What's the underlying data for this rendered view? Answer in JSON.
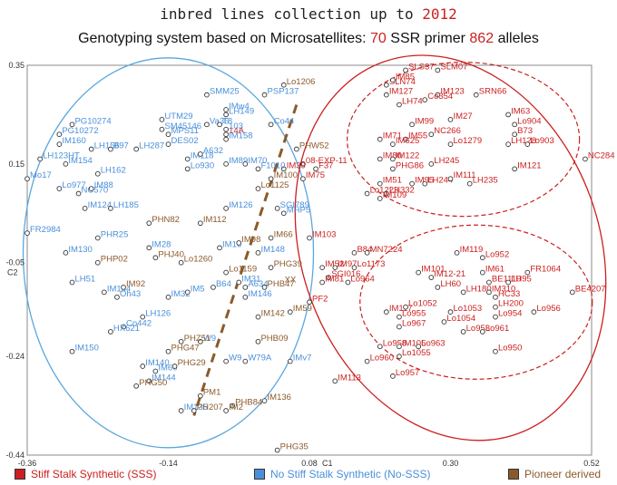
{
  "title": {
    "prefix": "inbred lines collection up to ",
    "year": "2012"
  },
  "subtitle": {
    "text1": "Genotyping system based on Microsatellites:",
    "n_primers": "70",
    "text2": "SSR primer",
    "n_alleles": "862",
    "text3": "alleles"
  },
  "legend": [
    {
      "label": "Stiff Stalk Synthetic (SSS)",
      "color": "#cc1f1f",
      "text_color": "#cc1f1f"
    },
    {
      "label": "No Stiff Stalk Synthetic (No-SSS)",
      "color": "#4a90d9",
      "text_color": "#4a90d9"
    },
    {
      "label": "Pioneer derived",
      "color": "#8b5a2b",
      "text_color": "#8b5a2b"
    }
  ],
  "colors": {
    "sss": "#cc1f1f",
    "nosss": "#4a90d9",
    "pioneer": "#8b5a2b"
  },
  "chart_data": {
    "type": "scatter",
    "xlabel": "C1",
    "ylabel": "C2",
    "xlim": [
      -0.36,
      0.52
    ],
    "ylim": [
      -0.44,
      0.35
    ],
    "xticks": [
      "-0.36",
      "-0.14",
      "0.08",
      "0.30",
      "0.52"
    ],
    "yticks": [
      "0.35",
      "0.15",
      "-0.05",
      "-0.24",
      "-0.44"
    ],
    "series": [
      {
        "key": "sss",
        "points": [
          {
            "label": "SLS37",
            "x": 0.23,
            "y": 0.34
          },
          {
            "label": "SLM07",
            "x": 0.28,
            "y": 0.34
          },
          {
            "label": "SLN74",
            "x": 0.2,
            "y": 0.31
          },
          {
            "label": "IM85",
            "x": 0.21,
            "y": 0.32
          },
          {
            "label": "IM127",
            "x": 0.2,
            "y": 0.29
          },
          {
            "label": "IM123",
            "x": 0.28,
            "y": 0.29
          },
          {
            "label": "SRN66",
            "x": 0.34,
            "y": 0.29
          },
          {
            "label": "LH74",
            "x": 0.22,
            "y": 0.27
          },
          {
            "label": "Co354",
            "x": 0.26,
            "y": 0.28
          },
          {
            "label": "IM63",
            "x": 0.39,
            "y": 0.25
          },
          {
            "label": "IM27",
            "x": 0.3,
            "y": 0.24
          },
          {
            "label": "Lo904",
            "x": 0.4,
            "y": 0.23
          },
          {
            "label": "IM99",
            "x": 0.24,
            "y": 0.23
          },
          {
            "label": "NC266",
            "x": 0.27,
            "y": 0.21
          },
          {
            "label": "B73",
            "x": 0.4,
            "y": 0.21
          },
          {
            "label": "IM71",
            "x": 0.19,
            "y": 0.2
          },
          {
            "label": "IM55",
            "x": 0.23,
            "y": 0.2
          },
          {
            "label": "IM625",
            "x": 0.21,
            "y": 0.19
          },
          {
            "label": "Lo1279",
            "x": 0.3,
            "y": 0.19
          },
          {
            "label": "LH128",
            "x": 0.39,
            "y": 0.19
          },
          {
            "label": "Lo903",
            "x": 0.42,
            "y": 0.19
          },
          {
            "label": "NC284",
            "x": 0.51,
            "y": 0.16
          },
          {
            "label": "IM80",
            "x": 0.19,
            "y": 0.16
          },
          {
            "label": "IM122",
            "x": 0.21,
            "y": 0.16
          },
          {
            "label": "LH245",
            "x": 0.27,
            "y": 0.15
          },
          {
            "label": "IM121",
            "x": 0.4,
            "y": 0.14
          },
          {
            "label": "PHG86",
            "x": 0.21,
            "y": 0.14
          },
          {
            "label": "IM51",
            "x": 0.19,
            "y": 0.11
          },
          {
            "label": "IM95",
            "x": 0.24,
            "y": 0.11
          },
          {
            "label": "LH244",
            "x": 0.26,
            "y": 0.11
          },
          {
            "label": "IM111",
            "x": 0.3,
            "y": 0.12
          },
          {
            "label": "LH235",
            "x": 0.33,
            "y": 0.11
          },
          {
            "label": "Lo1223",
            "x": 0.17,
            "y": 0.09
          },
          {
            "label": "LH332",
            "x": 0.2,
            "y": 0.09
          },
          {
            "label": "IM109",
            "x": 0.19,
            "y": 0.08
          },
          {
            "label": "08-EXP-11",
            "x": 0.07,
            "y": 0.15
          },
          {
            "label": "IM39",
            "x": 0.04,
            "y": 0.14
          },
          {
            "label": "IM75",
            "x": 0.07,
            "y": 0.12
          },
          {
            "label": "F37",
            "x": 0.09,
            "y": 0.14
          },
          {
            "label": "IM103",
            "x": 0.08,
            "y": 0.0
          },
          {
            "label": "B84",
            "x": 0.15,
            "y": -0.03
          },
          {
            "label": "MN7224",
            "x": 0.17,
            "y": -0.03
          },
          {
            "label": "IM52",
            "x": 0.1,
            "y": -0.06
          },
          {
            "label": "IM97",
            "x": 0.12,
            "y": -0.06
          },
          {
            "label": "SGI016",
            "x": 0.11,
            "y": -0.08
          },
          {
            "label": "Lo1173",
            "x": 0.15,
            "y": -0.06
          },
          {
            "label": "IM81",
            "x": 0.1,
            "y": -0.09
          },
          {
            "label": "Lo964",
            "x": 0.14,
            "y": -0.09
          },
          {
            "label": "IM119",
            "x": 0.31,
            "y": -0.03
          },
          {
            "label": "Lo952",
            "x": 0.35,
            "y": -0.04
          },
          {
            "label": "IM61",
            "x": 0.35,
            "y": -0.07
          },
          {
            "label": "FR1064",
            "x": 0.42,
            "y": -0.07
          },
          {
            "label": "IM101",
            "x": 0.25,
            "y": -0.07
          },
          {
            "label": "IM12-21",
            "x": 0.27,
            "y": -0.08
          },
          {
            "label": "BE1110",
            "x": 0.36,
            "y": -0.09
          },
          {
            "label": "LH95",
            "x": 0.39,
            "y": -0.09
          },
          {
            "label": "LH60",
            "x": 0.28,
            "y": -0.1
          },
          {
            "label": "LH180",
            "x": 0.32,
            "y": -0.11
          },
          {
            "label": "IM310",
            "x": 0.36,
            "y": -0.11
          },
          {
            "label": "BE4207",
            "x": 0.49,
            "y": -0.11
          },
          {
            "label": "HC33",
            "x": 0.37,
            "y": -0.12
          },
          {
            "label": "LH200",
            "x": 0.37,
            "y": -0.14
          },
          {
            "label": "Lo956",
            "x": 0.43,
            "y": -0.15
          },
          {
            "label": "PF2",
            "x": 0.08,
            "y": -0.13
          },
          {
            "label": "IM117",
            "x": 0.2,
            "y": -0.15
          },
          {
            "label": "Lo1052",
            "x": 0.23,
            "y": -0.14
          },
          {
            "label": "Lo1053",
            "x": 0.3,
            "y": -0.15
          },
          {
            "label": "Lo955",
            "x": 0.22,
            "y": -0.16
          },
          {
            "label": "Lo1054",
            "x": 0.29,
            "y": -0.17
          },
          {
            "label": "Lo954",
            "x": 0.37,
            "y": -0.16
          },
          {
            "label": "Lo967",
            "x": 0.22,
            "y": -0.18
          },
          {
            "label": "Lo953",
            "x": 0.32,
            "y": -0.19
          },
          {
            "label": "Lo961",
            "x": 0.35,
            "y": -0.19
          },
          {
            "label": "Lo958",
            "x": 0.19,
            "y": -0.22
          },
          {
            "label": "IM105",
            "x": 0.22,
            "y": -0.22
          },
          {
            "label": "Lo963",
            "x": 0.25,
            "y": -0.22
          },
          {
            "label": "Lo1055",
            "x": 0.22,
            "y": -0.24
          },
          {
            "label": "Lo950",
            "x": 0.37,
            "y": -0.23
          },
          {
            "label": "Lo960",
            "x": 0.17,
            "y": -0.25
          },
          {
            "label": "Lo957",
            "x": 0.21,
            "y": -0.28
          },
          {
            "label": "IM113",
            "x": 0.12,
            "y": -0.29
          },
          {
            "label": "14A",
            "x": -0.05,
            "y": 0.21
          }
        ]
      },
      {
        "key": "nosss",
        "points": [
          {
            "label": "SMM25",
            "x": -0.08,
            "y": 0.29
          },
          {
            "label": "IMw4",
            "x": -0.05,
            "y": 0.26
          },
          {
            "label": "LH149",
            "x": -0.05,
            "y": 0.25
          },
          {
            "label": "UTM29",
            "x": -0.15,
            "y": 0.24
          },
          {
            "label": "Va36",
            "x": -0.08,
            "y": 0.23
          },
          {
            "label": "PG10274",
            "x": -0.29,
            "y": 0.23
          },
          {
            "label": "SM45146",
            "x": -0.15,
            "y": 0.22
          },
          {
            "label": "PG10272",
            "x": -0.31,
            "y": 0.21
          },
          {
            "label": "MPS11",
            "x": -0.14,
            "y": 0.21
          },
          {
            "label": "T8",
            "x": -0.06,
            "y": 0.23
          },
          {
            "label": "103",
            "x": -0.05,
            "y": 0.22
          },
          {
            "label": "IM160",
            "x": -0.31,
            "y": 0.19
          },
          {
            "label": "DES02",
            "x": -0.14,
            "y": 0.19
          },
          {
            "label": "IM158",
            "x": -0.05,
            "y": 0.2
          },
          {
            "label": "LH156",
            "x": -0.26,
            "y": 0.18
          },
          {
            "label": "B97",
            "x": -0.23,
            "y": 0.18
          },
          {
            "label": "LH287",
            "x": -0.19,
            "y": 0.18
          },
          {
            "label": "LH123HT",
            "x": -0.34,
            "y": 0.16
          },
          {
            "label": "IM154",
            "x": -0.3,
            "y": 0.15
          },
          {
            "label": "IM118",
            "x": -0.11,
            "y": 0.16
          },
          {
            "label": "A632",
            "x": -0.09,
            "y": 0.17
          },
          {
            "label": "Mo17",
            "x": -0.36,
            "y": 0.12
          },
          {
            "label": "LH162",
            "x": -0.25,
            "y": 0.13
          },
          {
            "label": "IM89",
            "x": -0.05,
            "y": 0.15
          },
          {
            "label": "IM70",
            "x": -0.02,
            "y": 0.15
          },
          {
            "label": "F1010",
            "x": 0.0,
            "y": 0.14
          },
          {
            "label": "Lo930",
            "x": -0.11,
            "y": 0.14
          },
          {
            "label": "Lo977",
            "x": -0.31,
            "y": 0.1
          },
          {
            "label": "NC570",
            "x": -0.28,
            "y": 0.09
          },
          {
            "label": "IM88",
            "x": -0.26,
            "y": 0.1
          },
          {
            "label": "IM124",
            "x": -0.27,
            "y": 0.06
          },
          {
            "label": "LH185",
            "x": -0.23,
            "y": 0.06
          },
          {
            "label": "IM126",
            "x": -0.05,
            "y": 0.06
          },
          {
            "label": "FR2984",
            "x": -0.36,
            "y": 0.01
          },
          {
            "label": "PHR25",
            "x": -0.25,
            "y": 0.0
          },
          {
            "label": "IM130",
            "x": -0.3,
            "y": -0.03
          },
          {
            "label": "IM28",
            "x": -0.17,
            "y": -0.02
          },
          {
            "label": "IM16",
            "x": -0.06,
            "y": -0.02
          },
          {
            "label": "IM148",
            "x": 0.0,
            "y": -0.03
          },
          {
            "label": "LH51",
            "x": -0.29,
            "y": -0.09
          },
          {
            "label": "IM134",
            "x": -0.24,
            "y": -0.11
          },
          {
            "label": "Oh43",
            "x": -0.22,
            "y": -0.12
          },
          {
            "label": "IM32",
            "x": -0.14,
            "y": -0.12
          },
          {
            "label": "IM5",
            "x": -0.11,
            "y": -0.11
          },
          {
            "label": "B64",
            "x": -0.07,
            "y": -0.1
          },
          {
            "label": "IM31",
            "x": -0.03,
            "y": -0.09
          },
          {
            "label": "A634",
            "x": -0.02,
            "y": -0.1
          },
          {
            "label": "IM146",
            "x": -0.02,
            "y": -0.12
          },
          {
            "label": "LH126",
            "x": -0.18,
            "y": -0.16
          },
          {
            "label": "Co442",
            "x": -0.21,
            "y": -0.18
          },
          {
            "label": "HX621",
            "x": -0.23,
            "y": -0.19
          },
          {
            "label": "IM150",
            "x": -0.29,
            "y": -0.23
          },
          {
            "label": "W9",
            "x": -0.09,
            "y": -0.21
          },
          {
            "label": "IM140",
            "x": -0.18,
            "y": -0.26
          },
          {
            "label": "IM60",
            "x": -0.16,
            "y": -0.27
          },
          {
            "label": "W9",
            "x": -0.05,
            "y": -0.25
          },
          {
            "label": "W79A",
            "x": -0.02,
            "y": -0.25
          },
          {
            "label": "IMv7",
            "x": 0.05,
            "y": -0.25
          },
          {
            "label": "IM144",
            "x": -0.17,
            "y": -0.29
          },
          {
            "label": "IM135",
            "x": -0.12,
            "y": -0.35
          },
          {
            "label": "PSP137",
            "x": 0.01,
            "y": 0.29
          },
          {
            "label": "Co44",
            "x": 0.02,
            "y": 0.23
          },
          {
            "label": "SGI789",
            "x": 0.03,
            "y": 0.06
          },
          {
            "label": "MHP5",
            "x": 0.04,
            "y": 0.05
          }
        ]
      },
      {
        "key": "pioneer",
        "points": [
          {
            "label": "Lo1206",
            "x": 0.04,
            "y": 0.31
          },
          {
            "label": "PHW52",
            "x": 0.06,
            "y": 0.18
          },
          {
            "label": "IM100",
            "x": 0.02,
            "y": 0.12
          },
          {
            "label": "Lo1125",
            "x": 0.0,
            "y": 0.1
          },
          {
            "label": "IM66",
            "x": 0.02,
            "y": 0.0
          },
          {
            "label": "IM98",
            "x": -0.03,
            "y": -0.01
          },
          {
            "label": "PHJ40",
            "x": -0.16,
            "y": -0.04
          },
          {
            "label": "PHP02",
            "x": -0.25,
            "y": -0.05
          },
          {
            "label": "Lo1260",
            "x": -0.12,
            "y": -0.05
          },
          {
            "label": "Lo1159",
            "x": -0.05,
            "y": -0.07
          },
          {
            "label": "PHB47",
            "x": 0.01,
            "y": -0.1
          },
          {
            "label": "PHG39",
            "x": 0.02,
            "y": -0.06
          },
          {
            "label": "IM92",
            "x": -0.21,
            "y": -0.1
          },
          {
            "label": "IM142",
            "x": 0.0,
            "y": -0.16
          },
          {
            "label": "IM59",
            "x": 0.05,
            "y": -0.15
          },
          {
            "label": "PHZ51",
            "x": -0.12,
            "y": -0.21
          },
          {
            "label": "PHB09",
            "x": 0.0,
            "y": -0.21
          },
          {
            "label": "PHG47",
            "x": -0.14,
            "y": -0.23
          },
          {
            "label": "PHG29",
            "x": -0.13,
            "y": -0.26
          },
          {
            "label": "PHG50",
            "x": -0.19,
            "y": -0.3
          },
          {
            "label": "PM1",
            "x": -0.09,
            "y": -0.32
          },
          {
            "label": "PHB84",
            "x": -0.04,
            "y": -0.34
          },
          {
            "label": "IM136",
            "x": 0.01,
            "y": -0.33
          },
          {
            "label": "PH207",
            "x": -0.1,
            "y": -0.35
          },
          {
            "label": "IM2",
            "x": -0.05,
            "y": -0.35
          },
          {
            "label": "PHG35",
            "x": 0.03,
            "y": -0.43
          },
          {
            "label": "IM112",
            "x": -0.09,
            "y": 0.03
          },
          {
            "label": "PHN82",
            "x": -0.17,
            "y": 0.03
          }
        ]
      }
    ],
    "annotations": [
      {
        "text": "XX",
        "x": 0.03,
        "y": -0.09
      }
    ]
  }
}
